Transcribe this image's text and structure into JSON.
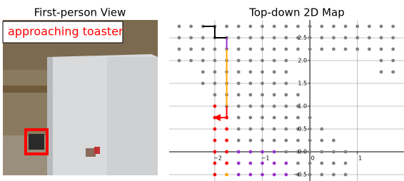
{
  "left_panel": {
    "title": "First-person View",
    "status_label": "approaching toaster"
  },
  "chart_data": {
    "type": "scatter",
    "title": "Top-down 2D Map",
    "xlim": [
      -2.96,
      1.98
    ],
    "ylim": [
      -0.64,
      2.89
    ],
    "grid": true,
    "xticks": [
      {
        "value": -2,
        "label": "−2"
      },
      {
        "value": -1,
        "label": "−1"
      },
      {
        "value": 0,
        "label": "0"
      },
      {
        "value": 1,
        "label": "1"
      }
    ],
    "yticks": [
      {
        "value": -0.5,
        "label": "−0.5"
      },
      {
        "value": 0,
        "label": "0.0"
      },
      {
        "value": 0.5,
        "label": "0.5"
      },
      {
        "value": 1,
        "label": "1.0"
      },
      {
        "value": 1.5,
        "label": "1.5"
      },
      {
        "value": 2,
        "label": "2.0"
      },
      {
        "value": 2.5,
        "label": "2.5"
      }
    ],
    "series": [
      {
        "type": "scatter",
        "color": "#808080",
        "x": [
          -2.75,
          -2.5,
          -2.25,
          -2,
          -1.75,
          -1.5,
          -1.25,
          -1,
          -0.75,
          -0.5,
          -0.25,
          0,
          0.25,
          0.5,
          0.75,
          1,
          1.25,
          1.5,
          1.75,
          -2.75,
          -2.5,
          -2.25,
          -2,
          -1.75,
          -1.5,
          -1.25,
          -1,
          -0.75,
          -0.5,
          -0.25,
          0,
          0.25,
          0.5,
          0.75,
          1,
          1.25,
          1.5,
          1.75,
          -2.75,
          -2.5,
          -2.25,
          -2,
          -1.75,
          -1.5,
          -1.25,
          -1,
          -0.75,
          -0.5,
          -0.25,
          0,
          0.25,
          0.5,
          0.75,
          1,
          1.25,
          1.5,
          1.75,
          -2.75,
          -2.5,
          -2.25,
          -2,
          -1.75,
          -1.5,
          -1.25,
          -1,
          -0.75,
          -0.5,
          1.5,
          1.75,
          -2.25,
          -2,
          -1.75,
          -1.5,
          -1.25,
          -1,
          -0.75,
          -0.5,
          1.5,
          1.75,
          -2.25,
          -2,
          -1.75,
          -1.5,
          -1.25,
          -1,
          -0.75,
          -0.5,
          -2,
          -1.75,
          -1.5,
          -1.25,
          -1,
          -0.75,
          -0.5,
          -0.25,
          -1.75,
          -1.5,
          -1.25,
          -1,
          -0.75,
          -0.5,
          -0.25,
          -1.5,
          -1.25,
          -1,
          -0.75,
          -0.5,
          -0.25,
          0,
          -1.5,
          -1.25,
          -1,
          -0.75,
          -0.5,
          -0.25,
          0,
          0.25,
          -1.5,
          -1.25,
          -1,
          -0.75,
          -0.5,
          -0.25,
          0,
          0.25,
          0.5,
          -0.5,
          -0.25,
          0,
          0.25,
          0.5,
          0.75,
          -0.25,
          0,
          0.25,
          0.5,
          0.75,
          -0.25,
          0,
          0.25,
          0.5,
          0.75
        ],
        "values": [
          2.75,
          2.75,
          2.75,
          2.75,
          2.75,
          2.75,
          2.75,
          2.75,
          2.75,
          2.75,
          2.75,
          2.75,
          2.75,
          2.75,
          2.75,
          2.75,
          2.75,
          2.75,
          2.75,
          2.5,
          2.5,
          2.5,
          2.5,
          2.5,
          2.5,
          2.5,
          2.5,
          2.5,
          2.5,
          2.5,
          2.5,
          2.5,
          2.5,
          2.5,
          2.5,
          2.5,
          2.5,
          2.5,
          2.25,
          2.25,
          2.25,
          2.25,
          2.25,
          2.25,
          2.25,
          2.25,
          2.25,
          2.25,
          2.25,
          2.25,
          2.25,
          2.25,
          2.25,
          2.25,
          2.25,
          2.25,
          2.25,
          2,
          2,
          2,
          2,
          2,
          2,
          2,
          2,
          2,
          2,
          2,
          2,
          1.75,
          1.75,
          1.75,
          1.75,
          1.75,
          1.75,
          1.75,
          1.75,
          1.75,
          1.75,
          1.5,
          1.5,
          1.5,
          1.5,
          1.5,
          1.5,
          1.5,
          1.5,
          1.25,
          1.25,
          1.25,
          1.25,
          1.25,
          1.25,
          1.25,
          1.25,
          1,
          1,
          1,
          1,
          1,
          1,
          1,
          0.75,
          0.75,
          0.75,
          0.75,
          0.75,
          0.75,
          0.75,
          0.5,
          0.5,
          0.5,
          0.5,
          0.5,
          0.5,
          0.5,
          0.5,
          0.25,
          0.25,
          0.25,
          0.25,
          0.25,
          0.25,
          0.25,
          0.25,
          0.25,
          0,
          0,
          0,
          0,
          0,
          0,
          -0.25,
          -0.25,
          -0.25,
          -0.25,
          -0.25,
          -0.5,
          -0.5,
          -0.5,
          -0.5,
          -0.5
        ]
      },
      {
        "type": "scatter",
        "color": "#ff0000",
        "x": [
          -2,
          -2,
          -1.75,
          -2,
          -1.75,
          -2,
          -1.75,
          -2,
          -1.75,
          -2,
          -1.75,
          -2
        ],
        "values": [
          1,
          0.75,
          0.75,
          0.5,
          0.5,
          0.25,
          0.25,
          0,
          0,
          -0.25,
          -0.25,
          -0.5
        ]
      },
      {
        "type": "scatter",
        "color": "#9932cc",
        "x": [
          -1.5,
          -1.25,
          -1,
          -0.75,
          -1.5,
          -1.25,
          -1,
          -0.75,
          -0.5,
          -1.5,
          -1.25,
          -1,
          -0.75,
          -0.5
        ],
        "values": [
          0,
          0,
          0,
          0,
          -0.25,
          -0.25,
          -0.25,
          -0.25,
          -0.25,
          -0.5,
          -0.5,
          -0.5,
          -0.5,
          -0.5
        ]
      },
      {
        "type": "scatter",
        "color": "#ffa500",
        "x": [
          -1.75
        ],
        "values": [
          -0.5
        ]
      },
      {
        "type": "line",
        "color": "#000000",
        "x": [
          -2.25,
          -2,
          -2,
          -1.75
        ],
        "values": [
          2.75,
          2.75,
          2.5,
          2.5
        ]
      },
      {
        "type": "line",
        "color": "#9932cc",
        "x": [
          -1.75,
          -1.75
        ],
        "values": [
          2.5,
          2.25
        ]
      },
      {
        "type": "line",
        "color": "#ffa500",
        "x": [
          -1.75,
          -1.75
        ],
        "values": [
          2.25,
          1
        ]
      },
      {
        "type": "line",
        "color": "#ff0000",
        "x": [
          -1.75,
          -1.75,
          -2
        ],
        "values": [
          1,
          0.75,
          0.75
        ],
        "arrow": true
      }
    ]
  }
}
